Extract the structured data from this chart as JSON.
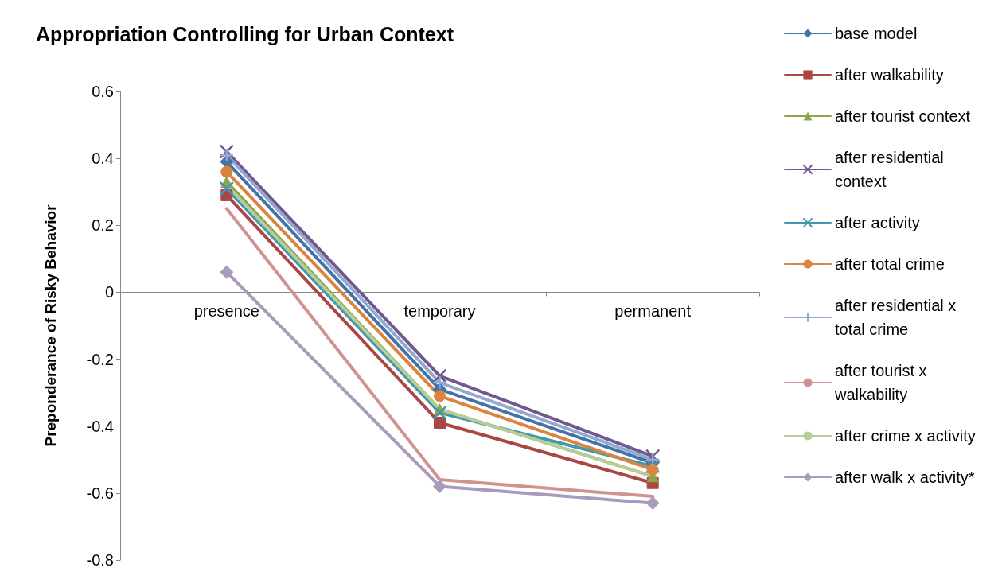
{
  "chart_data": {
    "type": "line",
    "title": "Appropriation Controlling for Urban Context",
    "ylabel": "Preponderance of Risky Behavior",
    "categories": [
      "presence",
      "temporary",
      "permanent"
    ],
    "ylim": [
      -0.8,
      0.6
    ],
    "yticks": [
      -0.8,
      -0.6,
      -0.4,
      -0.2,
      0,
      0.2,
      0.4,
      0.6
    ],
    "legend": "right",
    "series": [
      {
        "name": "base model",
        "color": "#4572a7",
        "marker": "diamond",
        "values": [
          0.39,
          -0.29,
          -0.51
        ]
      },
      {
        "name": "after walkability",
        "color": "#aa4643",
        "marker": "square",
        "values": [
          0.29,
          -0.39,
          -0.57
        ]
      },
      {
        "name": "after tourist context",
        "color": "#89a54e",
        "marker": "triangle",
        "values": [
          0.33,
          -0.35,
          -0.55
        ]
      },
      {
        "name": "after residential context",
        "color": "#71588f",
        "marker": "cross",
        "values": [
          0.42,
          -0.25,
          -0.49
        ]
      },
      {
        "name": "after activity",
        "color": "#4198af",
        "marker": "cross",
        "values": [
          0.31,
          -0.36,
          -0.52
        ]
      },
      {
        "name": "after total crime",
        "color": "#db843d",
        "marker": "circle",
        "values": [
          0.36,
          -0.31,
          -0.53
        ]
      },
      {
        "name": "after residential x total crime",
        "color": "#93a9cf",
        "marker": "plus",
        "values": [
          0.41,
          -0.27,
          -0.5
        ]
      },
      {
        "name": "after tourist x walkability",
        "color": "#d19392",
        "marker": "none",
        "values": [
          0.25,
          -0.56,
          -0.61
        ]
      },
      {
        "name": "after crime x activity",
        "color": "#b9cd96",
        "marker": "none",
        "values": [
          0.32,
          -0.35,
          -0.55
        ]
      },
      {
        "name": "after walk x activity*",
        "color": "#a99bbd",
        "marker": "diamond",
        "values": [
          0.06,
          -0.58,
          -0.63
        ]
      }
    ]
  }
}
